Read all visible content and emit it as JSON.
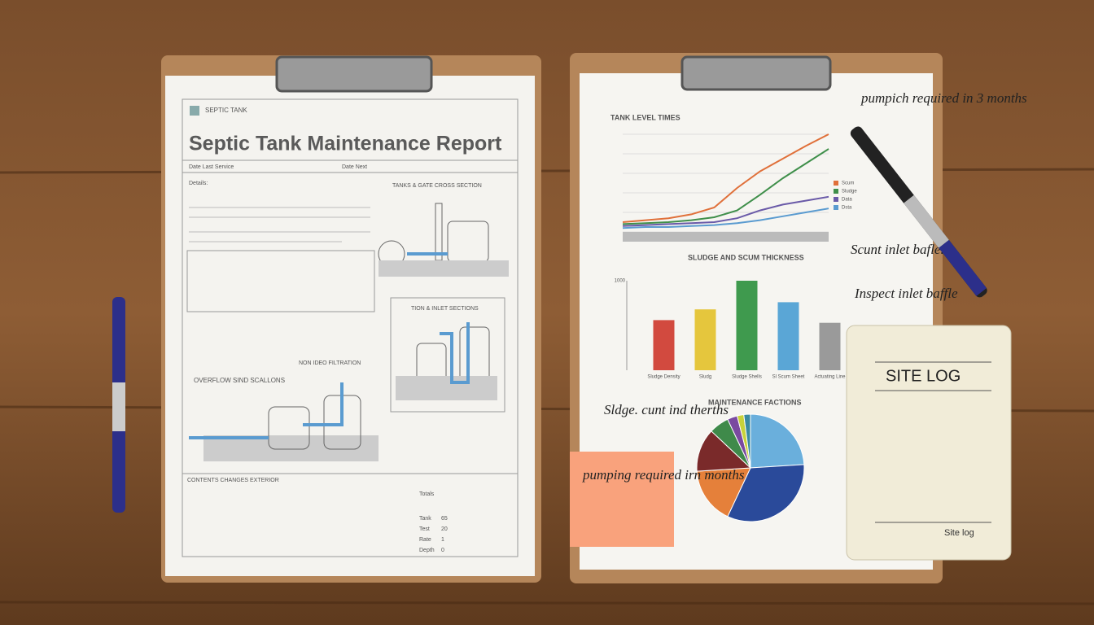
{
  "report": {
    "brand": "SEPTIC TANK",
    "title": "Septic Tank Maintenance Report",
    "date_left": "Date Last Service",
    "date_right": "Date Next",
    "details": "Details:",
    "section_cross": "TANKS & GATE CROSS SECTION",
    "section_inlet": "TION & INLET SECTIONS",
    "section_overflow": "OVERFLOW SIND SCALLONS",
    "section_flow": "NON IDEO FILTRATION",
    "footer": "CONTENTS CHANGES EXTERIOR",
    "table_title": "Totals",
    "table_rows": [
      [
        "Tank",
        "65"
      ],
      [
        "Test",
        "20"
      ],
      [
        "Rate",
        "1"
      ],
      [
        "Depth",
        "0"
      ]
    ]
  },
  "notes": {
    "pump_top": "pumpich required in 3 months",
    "scum": "Scunt inlet bafle.",
    "inspect": "Inspect inlet baffle",
    "sludge": "Sldge. cunt ind therths",
    "sticky": "pumping required irn months",
    "site_log": "SITE LOG",
    "site_log_small": "Site log"
  },
  "chart_data": [
    {
      "type": "line",
      "title": "TANK LEVEL TIMES",
      "categories": [
        null,
        null,
        null,
        null,
        null,
        null,
        null,
        null,
        null,
        null
      ],
      "ylim": [
        0,
        100
      ],
      "series": [
        {
          "name": "Scum",
          "color": "#e0703a",
          "values": [
            10,
            12,
            14,
            18,
            25,
            45,
            62,
            75,
            88,
            100
          ]
        },
        {
          "name": "Sludge",
          "color": "#3f8f4a",
          "values": [
            8,
            9,
            10,
            12,
            15,
            22,
            38,
            55,
            70,
            85
          ]
        },
        {
          "name": "Data",
          "color": "#6a5aa8",
          "values": [
            6,
            7,
            8,
            9,
            10,
            14,
            22,
            28,
            32,
            36
          ]
        },
        {
          "name": "Dsta",
          "color": "#5a9bd0",
          "values": [
            4,
            5,
            5,
            6,
            7,
            9,
            12,
            16,
            20,
            24
          ]
        }
      ]
    },
    {
      "type": "bar",
      "title": "SLUDGE AND SCUM THICKNESS",
      "categories": [
        "Sludge Density",
        "Sludg",
        "Sludge Shells",
        "Sl Scum Sheet",
        "Actuating Line"
      ],
      "values": [
        560,
        680,
        1000,
        760,
        530
      ],
      "colors": [
        "#d24a3f",
        "#e5c63d",
        "#3f9a4e",
        "#5aa6d6",
        "#9a9a9a"
      ],
      "ylim": [
        0,
        1000
      ],
      "yticks": [
        1000
      ]
    },
    {
      "type": "pie",
      "title": "MAINTENANCE FACTIONS",
      "values": [
        24,
        33,
        17,
        13,
        6,
        3,
        2,
        2
      ],
      "colors": [
        "#6aafdc",
        "#2a4a9a",
        "#e5803a",
        "#7a2a2a",
        "#3f8a4a",
        "#7a4aa0",
        "#c8d23a",
        "#3a8aa0"
      ]
    }
  ]
}
